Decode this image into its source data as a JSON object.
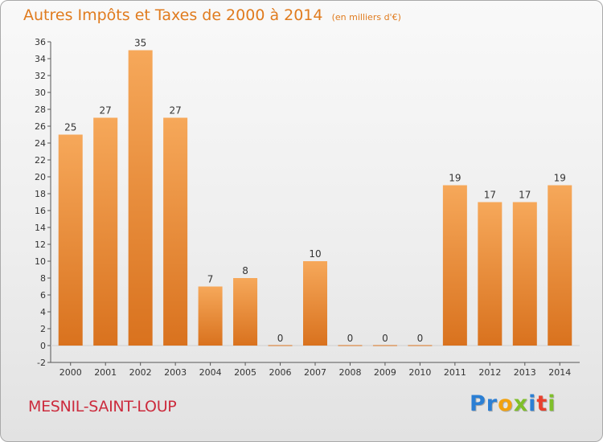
{
  "header": {
    "title": "Autres Impôts et Taxes de 2000 à 2014",
    "unit": "(en milliers d'€)"
  },
  "footer": {
    "commune": "MESNIL-SAINT-LOUP",
    "logo_letters": [
      {
        "ch": "P",
        "color": "#2b7fd4"
      },
      {
        "ch": "r",
        "color": "#2b7fd4"
      },
      {
        "ch": "o",
        "color": "#f2a20f"
      },
      {
        "ch": "x",
        "color": "#7fbf2a"
      },
      {
        "ch": "i",
        "color": "#2b7fd4"
      },
      {
        "ch": "t",
        "color": "#e8412d"
      },
      {
        "ch": "i",
        "color": "#7fbf2a"
      }
    ]
  },
  "chart_data": {
    "type": "bar",
    "title": "Autres Impôts et Taxes de 2000 à 2014",
    "subtitle": "(en milliers d'€)",
    "categories": [
      "2000",
      "2001",
      "2002",
      "2003",
      "2004",
      "2005",
      "2006",
      "2007",
      "2008",
      "2009",
      "2010",
      "2011",
      "2012",
      "2013",
      "2014"
    ],
    "values": [
      25,
      27,
      35,
      27,
      7,
      8,
      0,
      10,
      0,
      0,
      0,
      19,
      17,
      17,
      19
    ],
    "ylim": [
      -2,
      36
    ],
    "yticks": [
      -2,
      0,
      2,
      4,
      6,
      8,
      10,
      12,
      14,
      16,
      18,
      20,
      22,
      24,
      26,
      28,
      30,
      32,
      34,
      36
    ],
    "grid": false,
    "colors": {
      "bar_light": "#f6a85a",
      "bar_dark": "#d9721e",
      "axis": "#555555"
    }
  }
}
